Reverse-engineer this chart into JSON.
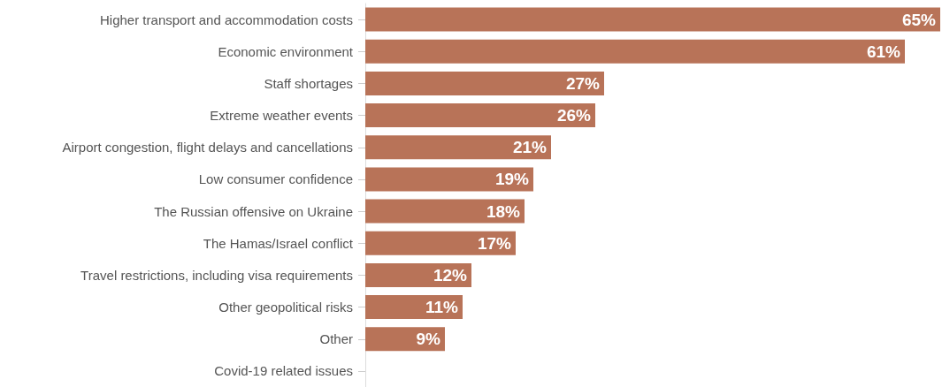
{
  "chart_data": {
    "type": "bar",
    "orientation": "horizontal",
    "categories": [
      "Higher transport and accommodation costs",
      "Economic environment",
      "Staff shortages",
      "Extreme weather events",
      "Airport congestion, flight delays and cancellations",
      "Low consumer confidence",
      "The Russian offensive on Ukraine",
      "The Hamas/Israel conflict",
      "Travel restrictions, including visa requirements",
      "Other geopolitical risks",
      "Other",
      "Covid-19 related issues"
    ],
    "values": [
      65,
      61,
      27,
      26,
      21,
      19,
      18,
      17,
      12,
      11,
      9,
      null
    ],
    "value_labels": [
      "65%",
      "61%",
      "27%",
      "26%",
      "21%",
      "19%",
      "18%",
      "17%",
      "12%",
      "11%",
      "9%",
      null
    ],
    "color": "#b87358",
    "xlim": [
      0,
      65
    ],
    "tick_labels": "y"
  }
}
